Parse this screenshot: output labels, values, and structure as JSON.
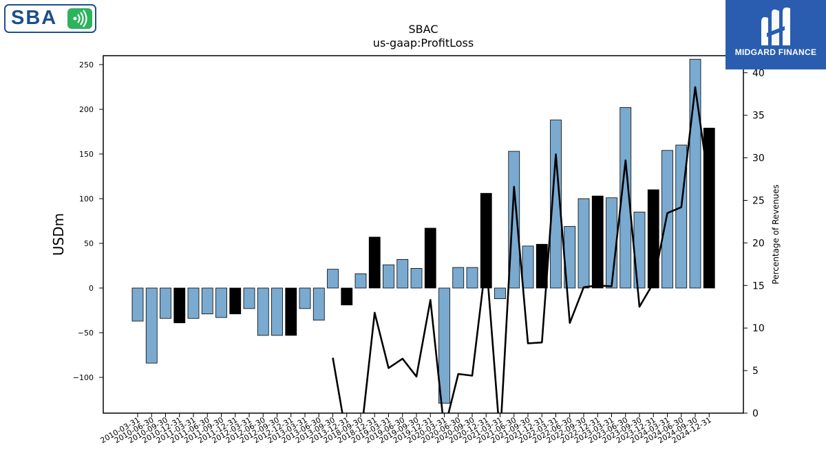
{
  "header": {
    "title": "SBAC",
    "subtitle": "us-gaap:ProfitLoss"
  },
  "logos": {
    "left_text": "SBA",
    "right_text": "MIDGARD FINANCE"
  },
  "colors": {
    "bar_regular": "#7aaad0",
    "bar_q4": "#000000",
    "line": "#000000",
    "logo_blue": "#1b4f8a",
    "logo_green": "#2db35d",
    "brand_panel": "#2a5db0"
  },
  "chart_data": {
    "type": "bar",
    "title": "SBAC",
    "subtitle": "us-gaap:ProfitLoss",
    "ylabel": "USDm",
    "y2label": "Percentage of Revenues",
    "ylim": [
      -140,
      260
    ],
    "y2lim": [
      0,
      42
    ],
    "yticks": [
      -100,
      -50,
      0,
      50,
      100,
      150,
      200,
      250
    ],
    "y2ticks": [
      0,
      5,
      10,
      15,
      20,
      25,
      30,
      35,
      40
    ],
    "ytick_labels": [
      "−100",
      "−50",
      "0",
      "50",
      "100",
      "150",
      "200",
      "250"
    ],
    "y2tick_labels": [
      "0",
      "5",
      "10",
      "15",
      "20",
      "25",
      "30",
      "35",
      "40"
    ],
    "grid": false,
    "categories": [
      "2010-03-31",
      "2010-06-30",
      "2010-09-30",
      "2010-12-31",
      "2011-03-31",
      "2011-06-30",
      "2011-09-30",
      "2011-12-31",
      "2012-03-31",
      "2012-06-30",
      "2012-09-30",
      "2012-12-31",
      "2013-03-31",
      "2013-06-30",
      "2013-09-30",
      "2013-12-31",
      "2018-09-30",
      "2018-12-31",
      "2019-03-31",
      "2019-06-30",
      "2019-09-30",
      "2019-12-31",
      "2020-03-31",
      "2020-06-30",
      "2020-09-30",
      "2020-12-31",
      "2021-03-31",
      "2021-06-30",
      "2021-09-30",
      "2021-12-31",
      "2022-03-31",
      "2022-06-30",
      "2022-09-30",
      "2022-12-31",
      "2023-03-31",
      "2023-06-30",
      "2023-09-30",
      "2023-12-31",
      "2024-03-31",
      "2024-06-30",
      "2024-09-30",
      "2024-12-31"
    ],
    "values": [
      -37,
      -84,
      -34,
      -39,
      -34,
      -29,
      -33,
      -29,
      -23,
      -53,
      -53,
      -53,
      -23,
      -36,
      21,
      -19,
      16,
      57,
      26,
      32,
      22,
      67,
      -129,
      23,
      23,
      106,
      -12,
      153,
      47,
      49,
      188,
      69,
      100,
      103,
      101,
      202,
      85,
      110,
      154,
      160,
      256,
      179
    ],
    "highlight": [
      false,
      false,
      false,
      true,
      false,
      false,
      false,
      true,
      false,
      false,
      false,
      true,
      false,
      false,
      false,
      true,
      false,
      true,
      false,
      false,
      false,
      true,
      false,
      false,
      false,
      true,
      false,
      false,
      false,
      true,
      false,
      false,
      false,
      true,
      false,
      false,
      false,
      true,
      false,
      false,
      false,
      true
    ],
    "percent_of_revenues": [
      null,
      null,
      null,
      null,
      null,
      null,
      null,
      null,
      null,
      null,
      null,
      null,
      null,
      null,
      6.5,
      -3,
      -3,
      11.8,
      5.3,
      6.4,
      4.3,
      13.3,
      -2,
      4.6,
      4.4,
      18,
      -3,
      26.6,
      8.2,
      8.3,
      30.4,
      10.6,
      14.8,
      15,
      14.9,
      29.7,
      12.5,
      15.3,
      23.5,
      24.2,
      38.3,
      26.6
    ]
  }
}
